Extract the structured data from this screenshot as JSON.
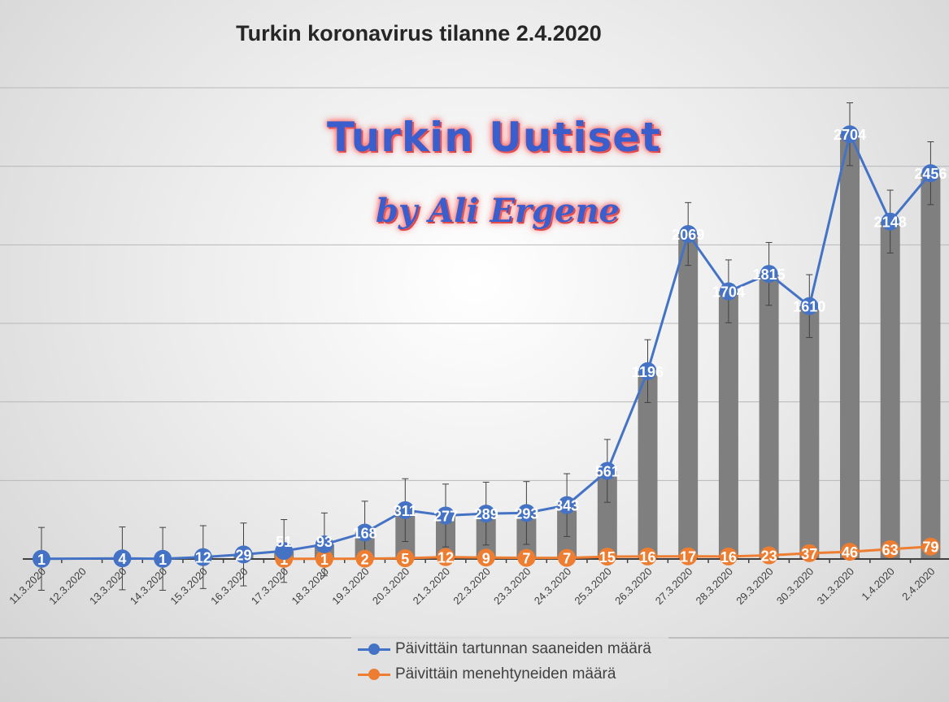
{
  "chart_data": {
    "type": "bar+line",
    "title": "Turkin koronavirus tilanne 2.4.2020",
    "watermark": {
      "line1": "Turkin Uutiset",
      "line2": "by Ali Ergene"
    },
    "categories": [
      "11.3.2020",
      "12.3.2020",
      "13.3.2020",
      "14.3.2020",
      "15.3.2020",
      "16.3.2020",
      "17.3.2020",
      "18.3.2020",
      "19.3.2020",
      "20.3.2020",
      "21.3.2020",
      "22.3.2020",
      "23.3.2020",
      "24.3.2020",
      "25.3.2020",
      "26.3.2020",
      "27.3.2020",
      "28.3.2020",
      "29.3.2020",
      "30.3.2020",
      "31.3.2020",
      "1.4.2020",
      "2.4.2020"
    ],
    "series": [
      {
        "name": "Päivittäin tartunnan saaneiden määrä",
        "kind": "line+bar",
        "color": "#4472c4",
        "bar_color": "#7f7f7f",
        "values": [
          1,
          null,
          4,
          1,
          12,
          29,
          51,
          93,
          168,
          311,
          277,
          289,
          293,
          343,
          561,
          1196,
          2069,
          1704,
          1815,
          1610,
          2704,
          2148,
          2456
        ]
      },
      {
        "name": "Päivittäin menehtyneiden määrä",
        "kind": "line",
        "color": "#ed7d31",
        "values": [
          null,
          null,
          null,
          null,
          null,
          null,
          1,
          1,
          2,
          5,
          12,
          9,
          7,
          7,
          15,
          16,
          17,
          16,
          23,
          37,
          46,
          63,
          79
        ]
      }
    ],
    "error_bars": 200,
    "ylim": [
      0,
      3000
    ],
    "y_gridlines": [
      0,
      500,
      1000,
      1500,
      2000,
      2500,
      3000
    ],
    "y_tick_labels": false,
    "grid": true,
    "legend_position": "bottom"
  }
}
